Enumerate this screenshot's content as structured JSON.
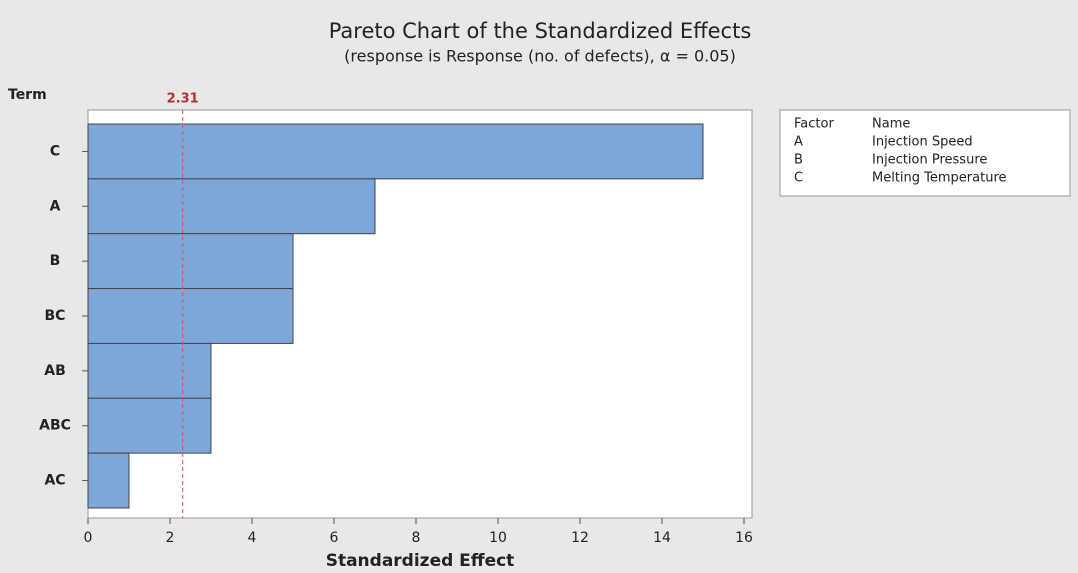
{
  "chart_data": {
    "type": "bar",
    "orientation": "horizontal",
    "title": "Pareto Chart of the Standardized Effects",
    "subtitle": "(response is Response (no. of defects), α = 0.05)",
    "y_label": "Term",
    "x_label": "Standardized Effect",
    "categories": [
      "C",
      "A",
      "B",
      "BC",
      "AB",
      "ABC",
      "AC"
    ],
    "values": [
      15,
      7,
      5,
      5,
      3,
      3,
      1
    ],
    "color": "#7ea6d8",
    "xlim": [
      0,
      16
    ],
    "xticks": [
      0,
      2,
      4,
      6,
      8,
      10,
      12,
      14,
      16
    ],
    "reference_line": 2.31,
    "reference_color": "#e05050",
    "legend_table": {
      "headers": [
        "Factor",
        "Name"
      ],
      "rows": [
        [
          "A",
          "Injection Speed"
        ],
        [
          "B",
          "Injection Pressure"
        ],
        [
          "C",
          "Melting Temperature"
        ]
      ]
    }
  }
}
